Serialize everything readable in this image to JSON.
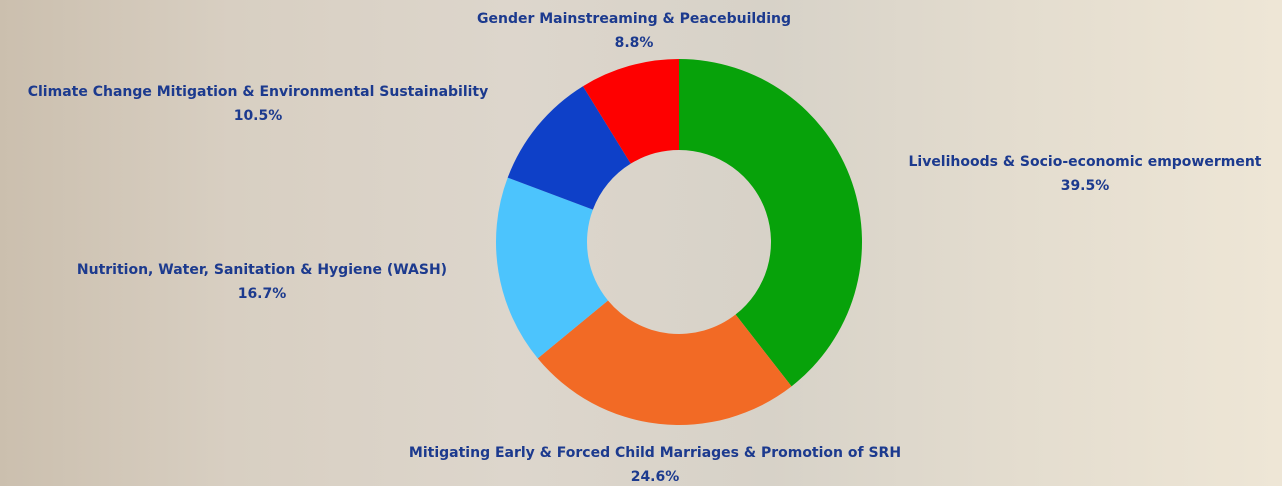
{
  "chart_data": {
    "type": "donut",
    "categories": [
      "Livelihoods & Socio-economic empowerment",
      "Mitigating Early & Forced Child Marriages & Promotion of SRH",
      "Nutrition, Water, Sanitation & Hygiene (WASH)",
      "Climate Change Mitigation & Environmental Sustainability",
      "Gender Mainstreaming & Peacebuilding"
    ],
    "values": [
      39.5,
      24.6,
      16.7,
      10.5,
      8.8
    ],
    "value_labels": [
      "39.5%",
      "24.6%",
      "16.7%",
      "10.5%",
      "8.8%"
    ],
    "colors": [
      "#07a20a",
      "#f26a25",
      "#4cc4fd",
      "#0e40c8",
      "#fe0000"
    ]
  }
}
